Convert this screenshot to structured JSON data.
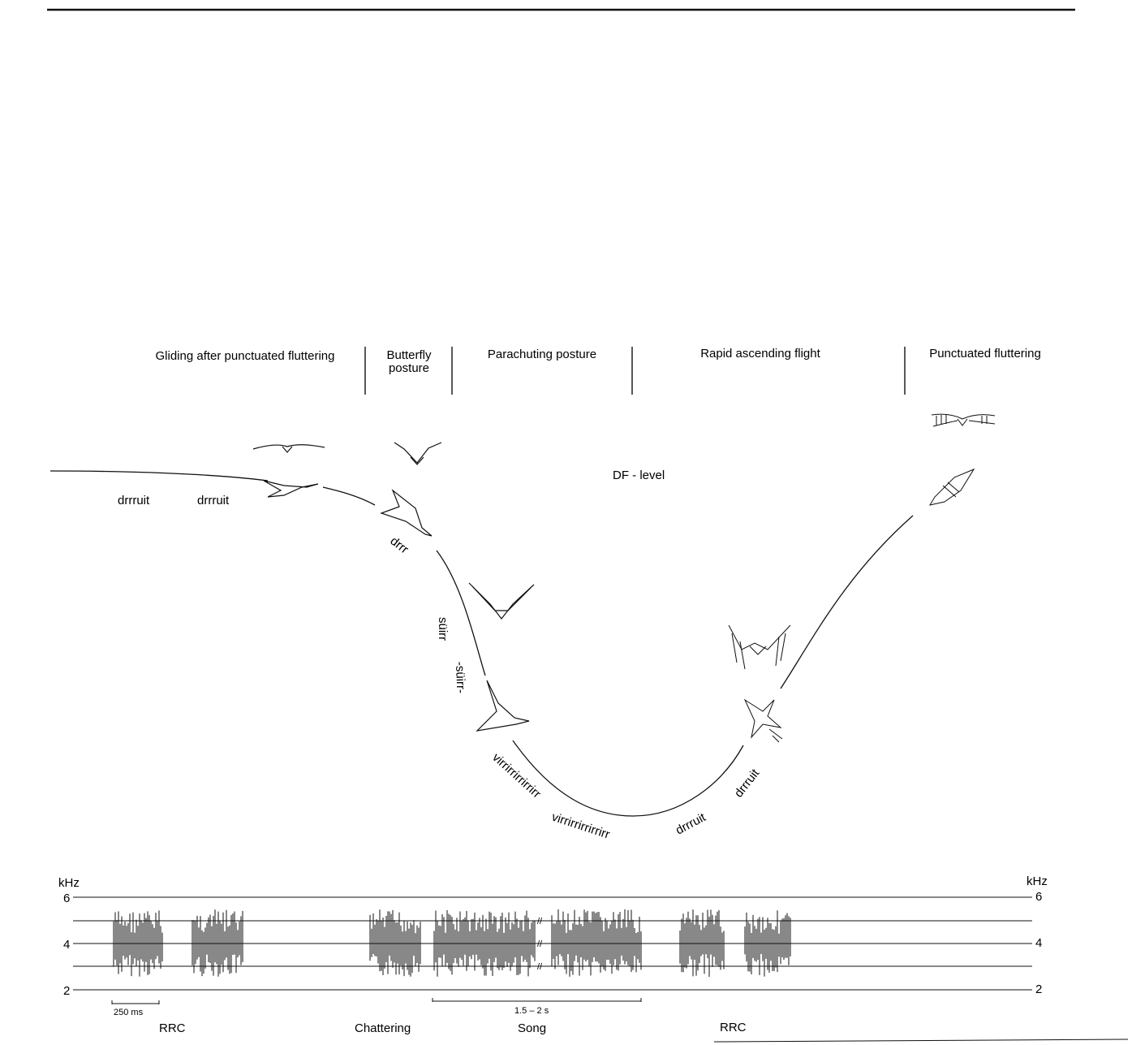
{
  "colors": {
    "ink": "#111111",
    "background": "#ffffff"
  },
  "phases": {
    "gliding": "Gliding after punctuated fluttering",
    "butterfly_line1": "Butterfly",
    "butterfly_line2": "posture",
    "parachuting": "Parachuting posture",
    "rapid": "Rapid ascending flight",
    "punctuated": "Punctuated fluttering"
  },
  "level_label": "DF - level",
  "calls": {
    "drrruit_1": "drrruit",
    "drrruit_2": "drrruit",
    "drrr": "drrr",
    "suirr_1": "süirr",
    "suirr_2": "-süirr-",
    "virrr_1": "virrirrirrirrirr",
    "virrr_2": "virrirrirrirrirr",
    "drrruit_3": "drrruit",
    "drrruit_4": "drrruit"
  },
  "sonogram": {
    "unit": "kHz",
    "ticks": [
      "6",
      "4",
      "2"
    ],
    "scale_250": "250 ms",
    "scale_song": "1.5 – 2 s",
    "labels": {
      "rrc_1": "RRC",
      "chattering": "Chattering",
      "song": "Song",
      "rrc_2": "RRC"
    }
  },
  "icons": [
    "bird-gliding-icon",
    "bird-butterfly-icon",
    "bird-parachuting-icon",
    "bird-ascending-icon",
    "bird-fluttering-icon"
  ]
}
